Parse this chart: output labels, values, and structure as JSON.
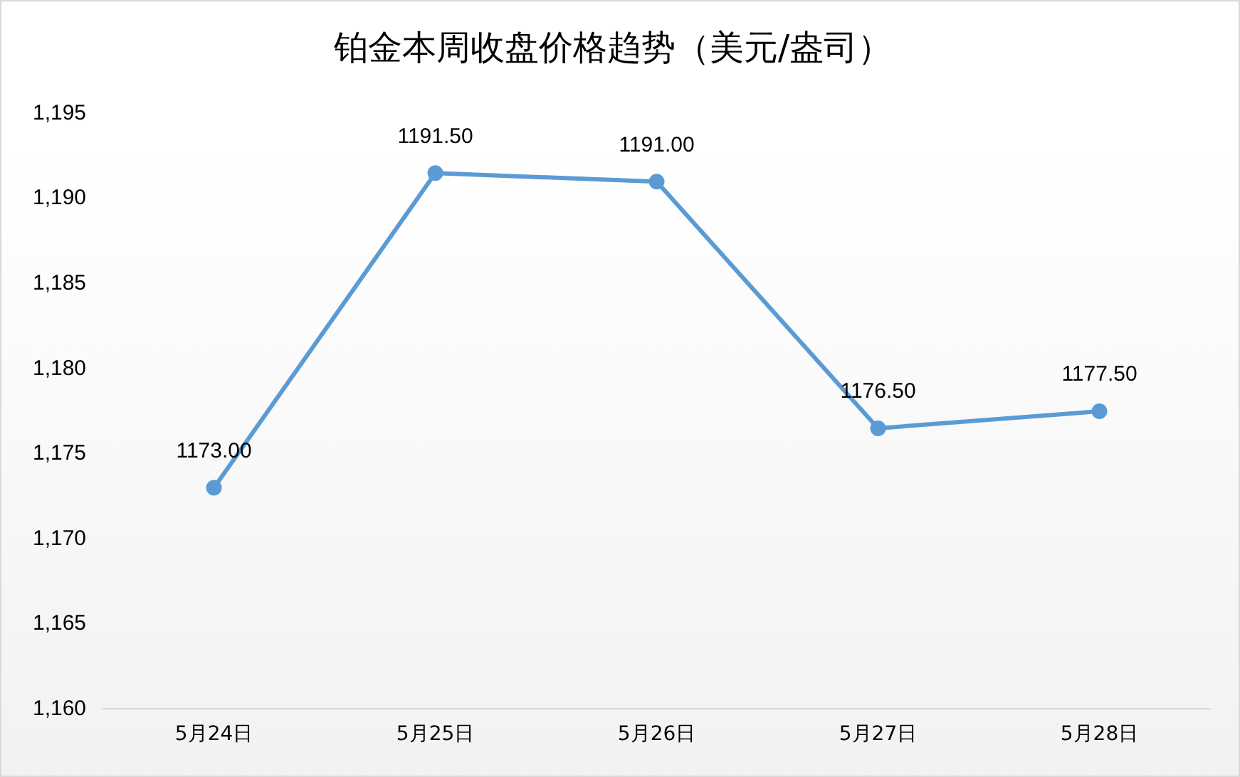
{
  "chart_data": {
    "type": "line",
    "title": "铂金本周收盘价格趋势（美元/盎司）",
    "categories": [
      "5月24日",
      "5月25日",
      "5月26日",
      "5月27日",
      "5月28日"
    ],
    "series": [
      {
        "color": "#5b9bd5",
        "values": [
          1173,
          1191.5,
          1191,
          1176.5,
          1177.5
        ],
        "value_labels": [
          "1173.00",
          "1191.50",
          "1191.00",
          "1176.50",
          "1177.50"
        ]
      }
    ],
    "ylim": [
      1160,
      1195
    ],
    "yticks": [
      {
        "value": 1160,
        "label": "1,160"
      },
      {
        "value": 1165,
        "label": "1,165"
      },
      {
        "value": 1170,
        "label": "1,170"
      },
      {
        "value": 1175,
        "label": "1,175"
      },
      {
        "value": 1180,
        "label": "1,180"
      },
      {
        "value": 1185,
        "label": "1,185"
      },
      {
        "value": 1190,
        "label": "1,190"
      },
      {
        "value": 1195,
        "label": "1,195"
      }
    ],
    "grid": false,
    "legend": false,
    "marker": "circle",
    "line_style": "solid"
  }
}
